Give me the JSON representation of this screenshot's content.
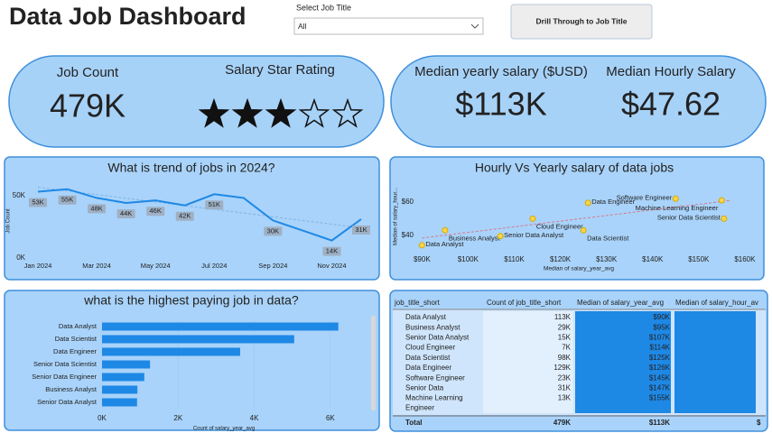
{
  "header": {
    "title": "Data Job Dashboard",
    "slicer_label": "Select Job Title",
    "slicer_value": "All",
    "button": "Drill Through to Job Title"
  },
  "kpis": {
    "job_count_label": "Job Count",
    "job_count": "479K",
    "rating_label": "Salary Star Rating",
    "rating": 3,
    "rating_max": 5,
    "yearly_label": "Median yearly salary ($USD)",
    "yearly": "$113K",
    "hourly_label": "Median Hourly Salary",
    "hourly": "$47.62"
  },
  "chart_data": [
    {
      "type": "line",
      "title": "What is trend of jobs in 2024?",
      "y_label": "Job Count",
      "categories": [
        "Jan 2024",
        null,
        "Mar 2024",
        null,
        "May 2024",
        null,
        "Jul 2024",
        null,
        "Sep 2024",
        null,
        "Nov 2024",
        null
      ],
      "values": [
        53000,
        55000,
        48000,
        44000,
        46000,
        42000,
        51000,
        48000,
        30000,
        22000,
        14000,
        31000
      ],
      "value_labels": [
        "53K",
        "55K",
        "48K",
        "44K",
        "46K",
        "42K",
        "51K",
        null,
        "30K",
        null,
        "14K",
        "31K"
      ],
      "color": "#1e88e5",
      "ylim": [
        0,
        62000
      ],
      "yticks": [
        {
          "value": 0,
          "label": "0K"
        },
        {
          "value": 50000,
          "label": "50K"
        }
      ],
      "grid": false,
      "trendline": true
    },
    {
      "type": "scatter",
      "title": "Hourly Vs Yearly salary of data jobs",
      "x_label": "Median of salary_year_avg",
      "y_label": "Median of salary_hour...",
      "labels": [
        "Data Analyst",
        "Business Analyst",
        "Senior Data Analyst",
        "Cloud Engineer",
        "Data Engineer",
        "Data Scientist",
        "Software Engineer",
        "Machine Learning Engineer",
        "Senior Data Scientist"
      ],
      "x": [
        90000,
        95000,
        107000,
        114000,
        126000,
        125000,
        145000,
        155000,
        155500
      ],
      "values": [
        34,
        43,
        39.5,
        50,
        59.5,
        43,
        62,
        61,
        50
      ],
      "color": "#f5c518",
      "xlim": [
        87000,
        161000
      ],
      "ylim": [
        28,
        73
      ],
      "xticks": [
        {
          "value": 90000,
          "label": "$90K"
        },
        {
          "value": 100000,
          "label": "$100K"
        },
        {
          "value": 110000,
          "label": "$110K"
        },
        {
          "value": 120000,
          "label": "$120K"
        },
        {
          "value": 130000,
          "label": "$130K"
        },
        {
          "value": 140000,
          "label": "$140K"
        },
        {
          "value": 150000,
          "label": "$150K"
        },
        {
          "value": 160000,
          "label": "$160K"
        }
      ],
      "yticks": [
        {
          "value": 40,
          "label": "$40"
        },
        {
          "value": 60,
          "label": "$60"
        }
      ],
      "grid": false,
      "trendline": true
    },
    {
      "type": "hbar",
      "title": "what is the highest paying job in data?",
      "x_label": "Count of salary_year_avg",
      "categories": [
        "Data Analyst",
        "Data Scientist",
        "Data Engineer",
        "Senior Data Scientist",
        "Senior Data Engineer",
        "Business Analyst",
        "Senior Data Analyst"
      ],
      "values": [
        6210,
        5050,
        3630,
        1260,
        1110,
        930,
        920
      ],
      "color": "#1e88e5",
      "xlim": [
        0,
        7000
      ],
      "xticks": [
        {
          "value": 0,
          "label": "0K"
        },
        {
          "value": 2000,
          "label": "2K"
        },
        {
          "value": 4000,
          "label": "4K"
        },
        {
          "value": 6000,
          "label": "6K"
        }
      ],
      "grid": true
    }
  ],
  "table": {
    "columns": [
      "job_title_short",
      "Count of job_title_short",
      "Median of salary_year_avg",
      "Median of salary_hour_av"
    ],
    "rows": [
      [
        "Data Analyst",
        "113K",
        "$90K"
      ],
      [
        "Business Analyst",
        "29K",
        "$95K"
      ],
      [
        "Senior Data Analyst",
        "15K",
        "$107K"
      ],
      [
        "Cloud Engineer",
        "7K",
        "$114K"
      ],
      [
        "Data Scientist",
        "98K",
        "$125K"
      ],
      [
        "Data Engineer",
        "129K",
        "$126K"
      ],
      [
        "Software Engineer",
        "23K",
        "$145K"
      ],
      [
        "Senior Data",
        "31K",
        "$147K"
      ],
      [
        "Machine Learning Engineer",
        "13K",
        "$155K"
      ]
    ],
    "total": [
      "Total",
      "479K",
      "$113K",
      "$"
    ]
  }
}
